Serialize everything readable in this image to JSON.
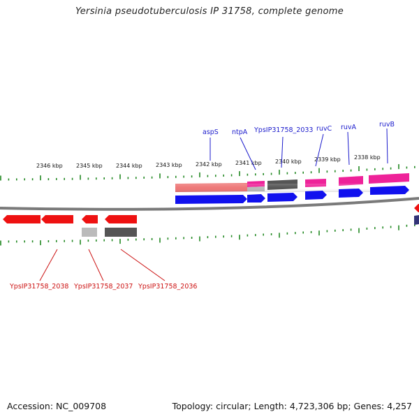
{
  "title": "Yersinia pseudotuberculosis IP 31758, complete genome",
  "footer": {
    "accession": "Accession: NC_009708",
    "topology": "Topology: circular; Length: 4,723,306 bp; Genes: 4,257"
  },
  "colors": {
    "forward_cds": "#1111ee",
    "reverse_cds": "#ee1111",
    "feature_pink": "#ee2299",
    "feature_salmon": "#ee7777",
    "feature_dark": "#555555",
    "feature_light": "#bbbbbb",
    "backbone": "#777777",
    "tick": "#228822",
    "label_top": "#1a1acc",
    "label_bottom": "#cc1111"
  },
  "kbp_labels": [
    "2346 kbp",
    "2345 kbp",
    "2344 kbp",
    "2343 kbp",
    "2342 kbp",
    "2341 kbp",
    "2340 kbp",
    "2339 kbp",
    "2338 kbp"
  ],
  "top_gene_labels": [
    "aspS",
    "ntpA",
    "YpsIP31758_2033",
    "ruvC",
    "ruvA",
    "ruvB"
  ],
  "bottom_gene_labels": [
    "YpsIP31758_2038",
    "YpsIP31758_2037",
    "YpsIP31758_2036"
  ]
}
